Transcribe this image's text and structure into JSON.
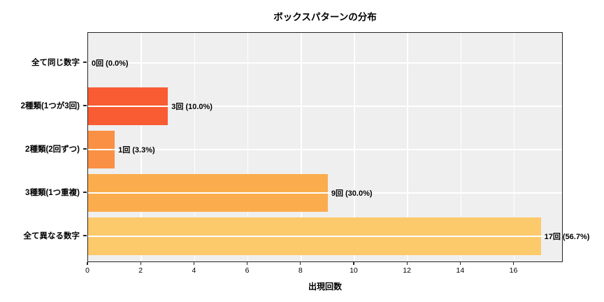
{
  "chart_data": {
    "type": "bar",
    "orientation": "horizontal",
    "title": "ボックスパターンの分布",
    "xlabel": "出現回数",
    "ylabel": "",
    "categories": [
      "全て同じ数字",
      "2種類(1つが3回)",
      "2種類(2回ずつ)",
      "3種類(1つ重複)",
      "全て異なる数字"
    ],
    "values": [
      0,
      3,
      1,
      9,
      17
    ],
    "value_labels": [
      "0回 (0.0%)",
      "3回 (10.0%)",
      "1回 (3.3%)",
      "9回 (30.0%)",
      "17回 (56.7%)"
    ],
    "bar_colors": [
      "#f9502f",
      "#f95b33",
      "#fa9044",
      "#fbad4d",
      "#fcc96b"
    ],
    "x_ticks": [
      0,
      2,
      4,
      6,
      8,
      10,
      12,
      14,
      16
    ],
    "xlim": [
      0,
      17.85
    ],
    "grid": true,
    "legend": false,
    "plot_background": "#efefef",
    "grid_color": "#ffffff"
  }
}
